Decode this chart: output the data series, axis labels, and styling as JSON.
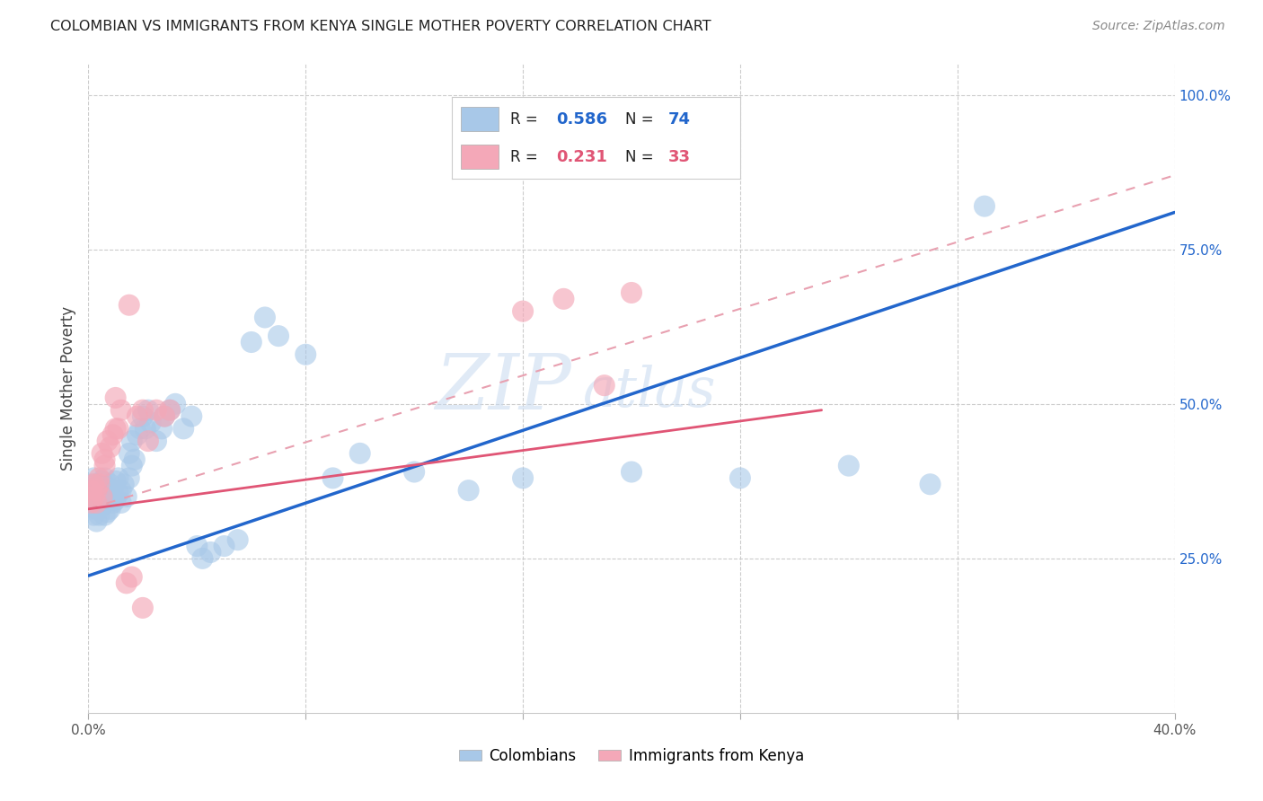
{
  "title": "COLOMBIAN VS IMMIGRANTS FROM KENYA SINGLE MOTHER POVERTY CORRELATION CHART",
  "source": "Source: ZipAtlas.com",
  "ylabel": "Single Mother Poverty",
  "yticks": [
    0.0,
    0.25,
    0.5,
    0.75,
    1.0
  ],
  "ytick_labels": [
    "",
    "25.0%",
    "50.0%",
    "75.0%",
    "100.0%"
  ],
  "xlim": [
    0.0,
    0.4
  ],
  "ylim": [
    0.0,
    1.05
  ],
  "legend_labels": [
    "Colombians",
    "Immigrants from Kenya"
  ],
  "blue_color": "#a8c8e8",
  "pink_color": "#f4a8b8",
  "blue_line_color": "#2266cc",
  "pink_line_color": "#e05575",
  "pink_dashed_color": "#e8a0b0",
  "R_blue": 0.586,
  "N_blue": 74,
  "R_pink": 0.231,
  "N_pink": 33,
  "watermark_text": "ZIP",
  "watermark_text2": "atlas",
  "background_color": "#ffffff",
  "grid_color": "#cccccc",
  "colombians_x": [
    0.001,
    0.001,
    0.001,
    0.002,
    0.002,
    0.002,
    0.002,
    0.003,
    0.003,
    0.003,
    0.003,
    0.004,
    0.004,
    0.004,
    0.005,
    0.005,
    0.005,
    0.006,
    0.006,
    0.006,
    0.006,
    0.007,
    0.007,
    0.007,
    0.008,
    0.008,
    0.008,
    0.009,
    0.009,
    0.01,
    0.01,
    0.011,
    0.011,
    0.012,
    0.012,
    0.013,
    0.014,
    0.015,
    0.015,
    0.016,
    0.016,
    0.017,
    0.018,
    0.019,
    0.02,
    0.021,
    0.022,
    0.023,
    0.025,
    0.027,
    0.028,
    0.03,
    0.032,
    0.035,
    0.038,
    0.04,
    0.042,
    0.045,
    0.05,
    0.055,
    0.06,
    0.065,
    0.07,
    0.08,
    0.09,
    0.1,
    0.12,
    0.14,
    0.16,
    0.2,
    0.24,
    0.28,
    0.31,
    0.33
  ],
  "colombians_y": [
    0.37,
    0.35,
    0.33,
    0.36,
    0.34,
    0.32,
    0.38,
    0.35,
    0.33,
    0.37,
    0.31,
    0.36,
    0.34,
    0.32,
    0.355,
    0.335,
    0.375,
    0.34,
    0.36,
    0.32,
    0.38,
    0.345,
    0.365,
    0.325,
    0.35,
    0.37,
    0.33,
    0.36,
    0.34,
    0.375,
    0.345,
    0.355,
    0.38,
    0.36,
    0.34,
    0.37,
    0.35,
    0.38,
    0.42,
    0.4,
    0.44,
    0.41,
    0.45,
    0.46,
    0.48,
    0.46,
    0.49,
    0.47,
    0.44,
    0.46,
    0.48,
    0.49,
    0.5,
    0.46,
    0.48,
    0.27,
    0.25,
    0.26,
    0.27,
    0.28,
    0.6,
    0.64,
    0.61,
    0.58,
    0.38,
    0.42,
    0.39,
    0.36,
    0.38,
    0.39,
    0.38,
    0.4,
    0.37,
    0.82
  ],
  "kenya_x": [
    0.001,
    0.001,
    0.002,
    0.002,
    0.003,
    0.003,
    0.004,
    0.004,
    0.005,
    0.005,
    0.006,
    0.006,
    0.007,
    0.008,
    0.009,
    0.01,
    0.011,
    0.012,
    0.014,
    0.016,
    0.018,
    0.02,
    0.022,
    0.025,
    0.028,
    0.03,
    0.16,
    0.175,
    0.19,
    0.01,
    0.015,
    0.2,
    0.02
  ],
  "kenya_y": [
    0.36,
    0.34,
    0.37,
    0.35,
    0.36,
    0.34,
    0.37,
    0.38,
    0.35,
    0.42,
    0.41,
    0.4,
    0.44,
    0.43,
    0.45,
    0.46,
    0.46,
    0.49,
    0.21,
    0.22,
    0.48,
    0.49,
    0.44,
    0.49,
    0.48,
    0.49,
    0.65,
    0.67,
    0.53,
    0.51,
    0.66,
    0.68,
    0.17
  ],
  "blue_line": [
    0.0,
    0.222,
    0.4,
    0.81
  ],
  "pink_line": [
    0.0,
    0.33,
    0.27,
    0.49
  ],
  "pink_dashed_line": [
    0.0,
    0.33,
    0.4,
    0.87
  ]
}
